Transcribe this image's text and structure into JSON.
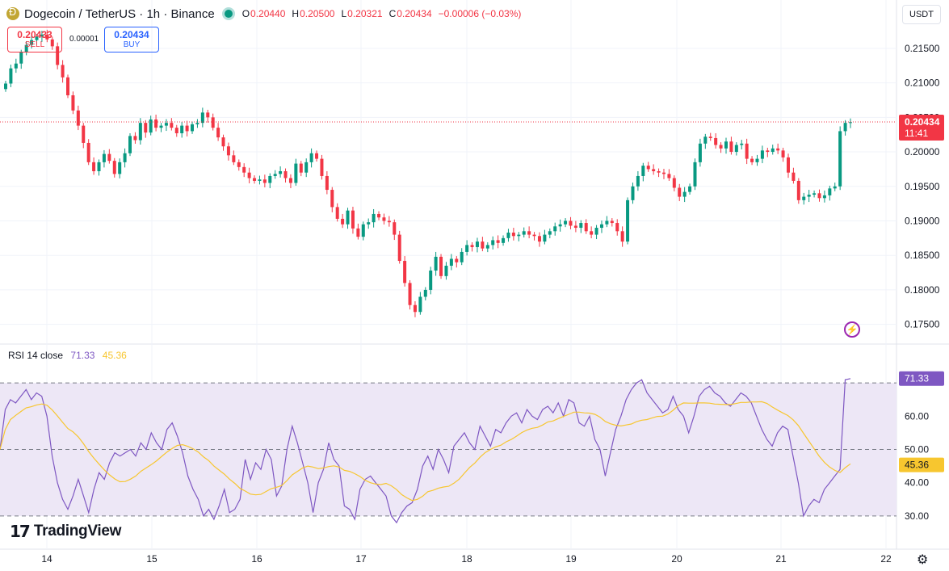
{
  "header": {
    "title": "Dogecoin / TetherUS · 1h · Binance",
    "o_label": "O",
    "o_value": "0.20440",
    "h_label": "H",
    "h_value": "0.20500",
    "l_label": "L",
    "l_value": "0.20321",
    "c_label": "C",
    "c_value": "0.20434",
    "change": "−0.00006 (−0.03%)"
  },
  "trade": {
    "sell_price": "0.20433",
    "sell_label": "SELL",
    "spread": "0.00001",
    "buy_price": "0.20434",
    "buy_label": "BUY"
  },
  "currency": "USDT",
  "price_tag": {
    "price": "0.20434",
    "countdown": "11:41"
  },
  "rsi": {
    "label": "RSI 14 close",
    "value": "71.33",
    "ma_value": "45.36",
    "value_tag": "71.33",
    "ma_tag": "45.36"
  },
  "brand": "TradingView",
  "icons": {
    "coin": "dogecoin-icon",
    "live": "live-dot-icon",
    "bolt": "lightning-icon",
    "gear": "gear-icon",
    "logo": "tradingview-logo"
  },
  "colors": {
    "up": "#089981",
    "down": "#f23645",
    "rsi": "#7e57c2",
    "rsi_ma": "#f7c62f",
    "band": "#ede7f6"
  },
  "chart_data": [
    {
      "type": "candlestick",
      "price_axis": [
        "0.21500",
        "0.21000",
        "0.20500",
        "0.20000",
        "0.19500",
        "0.19000",
        "0.18500",
        "0.18000",
        "0.17500"
      ],
      "ylim": [
        0.1725,
        0.2185
      ],
      "x_ticks": [
        "14",
        "15",
        "16",
        "17",
        "18",
        "19",
        "20",
        "21",
        "22"
      ],
      "current_price": 0.20434,
      "closes": [
        0.2099,
        0.2121,
        0.2128,
        0.2144,
        0.2155,
        0.2162,
        0.2167,
        0.217,
        0.2163,
        0.2153,
        0.2126,
        0.2108,
        0.2082,
        0.206,
        0.2038,
        0.2013,
        0.1985,
        0.1972,
        0.1985,
        0.1997,
        0.1987,
        0.1968,
        0.1985,
        0.1998,
        0.2023,
        0.2017,
        0.2042,
        0.2028,
        0.2047,
        0.2035,
        0.2038,
        0.2042,
        0.2035,
        0.2027,
        0.2038,
        0.203,
        0.204,
        0.2042,
        0.2057,
        0.205,
        0.2035,
        0.2021,
        0.2008,
        0.1995,
        0.1985,
        0.1978,
        0.197,
        0.1962,
        0.1958,
        0.196,
        0.1955,
        0.1965,
        0.1968,
        0.1972,
        0.1962,
        0.1955,
        0.1983,
        0.197,
        0.1985,
        0.1998,
        0.199,
        0.1965,
        0.1945,
        0.192,
        0.1903,
        0.1895,
        0.1915,
        0.1889,
        0.1877,
        0.1895,
        0.1898,
        0.191,
        0.1905,
        0.19,
        0.1898,
        0.188,
        0.1842,
        0.181,
        0.1778,
        0.1768,
        0.179,
        0.18,
        0.1828,
        0.1848,
        0.182,
        0.1835,
        0.1845,
        0.184,
        0.1855,
        0.1865,
        0.1862,
        0.187,
        0.186,
        0.1865,
        0.1872,
        0.1868,
        0.1875,
        0.1883,
        0.1878,
        0.188,
        0.1885,
        0.188,
        0.1878,
        0.187,
        0.188,
        0.1885,
        0.1892,
        0.1895,
        0.19,
        0.1893,
        0.189,
        0.1897,
        0.1885,
        0.188,
        0.189,
        0.1895,
        0.19,
        0.1897,
        0.1885,
        0.187,
        0.193,
        0.195,
        0.1965,
        0.198,
        0.1975,
        0.1972,
        0.197,
        0.1968,
        0.1962,
        0.1948,
        0.1935,
        0.1942,
        0.195,
        0.1985,
        0.2012,
        0.2022,
        0.202,
        0.201,
        0.2005,
        0.2015,
        0.2,
        0.201,
        0.2012,
        0.199,
        0.1985,
        0.199,
        0.2002,
        0.2,
        0.2005,
        0.2002,
        0.1992,
        0.197,
        0.1958,
        0.193,
        0.1935,
        0.1938,
        0.194,
        0.1933,
        0.1937,
        0.1947,
        0.195,
        0.203,
        0.2042,
        0.2043
      ],
      "rsi": [
        50,
        62,
        65,
        64,
        66,
        68,
        65,
        67,
        66,
        60,
        48,
        40,
        35,
        32,
        36,
        41,
        36,
        31,
        38,
        43,
        41,
        46,
        49,
        48,
        49,
        50,
        48,
        52,
        50,
        55,
        52,
        50,
        56,
        58,
        54,
        49,
        42,
        38,
        35,
        30,
        32,
        29,
        33,
        38,
        31,
        32,
        35,
        47,
        41,
        46,
        44,
        50,
        47,
        36,
        39,
        50,
        57,
        52,
        46,
        40,
        31,
        40,
        44,
        52,
        47,
        45,
        33,
        32,
        29,
        38,
        41,
        42,
        40,
        38,
        36,
        30,
        28,
        31,
        33,
        34,
        38,
        45,
        48,
        44,
        50,
        47,
        43,
        51,
        53,
        55,
        52,
        50,
        57,
        54,
        51,
        56,
        55,
        58,
        60,
        61,
        58,
        62,
        60,
        59,
        62,
        63,
        61,
        64,
        60,
        65,
        64,
        58,
        57,
        60,
        53,
        50,
        42,
        49,
        56,
        60,
        65,
        68,
        70,
        71,
        67,
        65,
        63,
        61,
        62,
        66,
        62,
        60,
        55,
        60,
        66,
        68,
        69,
        67,
        66,
        64,
        63,
        65,
        67,
        66,
        64,
        60,
        56,
        53,
        51,
        55,
        57,
        56,
        48,
        40,
        30,
        33,
        35,
        34,
        38,
        40,
        42,
        44,
        71,
        71.3
      ]
    }
  ]
}
